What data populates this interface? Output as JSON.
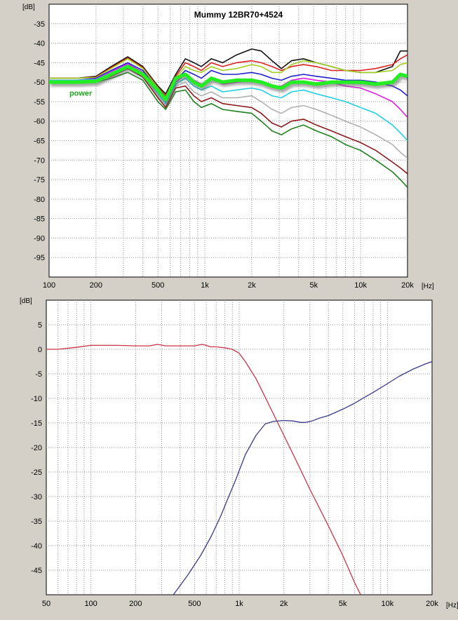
{
  "chart_data": [
    {
      "type": "line",
      "title": "Mummy 12BR70+4524",
      "ylabel": "[dB]",
      "xlabel": "[Hz]",
      "xscale": "log",
      "xlim": [
        100,
        20000
      ],
      "ylim": [
        -100,
        -30
      ],
      "yticks": [
        -35,
        -40,
        -45,
        -50,
        -55,
        -60,
        -65,
        -70,
        -75,
        -80,
        -85,
        -90,
        -95
      ],
      "xticks": [
        100,
        200,
        500,
        1000,
        2000,
        5000,
        10000,
        20000
      ],
      "xtick_labels": [
        "100",
        "200",
        "500",
        "1k",
        "2k",
        "5k",
        "10k",
        "20k"
      ],
      "grid": true,
      "annotations": [
        {
          "text": "power",
          "x": 135,
          "y": -53.5,
          "color": "#1ea81e"
        }
      ],
      "series": [
        {
          "color": "#111111",
          "x": [
            100,
            150,
            200,
            250,
            320,
            400,
            500,
            560,
            650,
            750,
            850,
            950,
            1100,
            1300,
            1600,
            2000,
            2300,
            2700,
            3100,
            3600,
            4300,
            5200,
            6500,
            8000,
            10000,
            12500,
            16000,
            18000,
            20000
          ],
          "y": [
            -49,
            -49,
            -48.5,
            -46,
            -43.5,
            -46,
            -51,
            -53,
            -48,
            -44,
            -45,
            -46,
            -44,
            -45,
            -43,
            -41.5,
            -42,
            -44.5,
            -46.5,
            -44.5,
            -44,
            -45,
            -46,
            -47,
            -47.5,
            -47.5,
            -46,
            -42,
            -42
          ]
        },
        {
          "color": "#e02020",
          "x": [
            100,
            150,
            200,
            250,
            320,
            400,
            500,
            560,
            650,
            750,
            850,
            950,
            1100,
            1300,
            1600,
            2000,
            2300,
            2700,
            3100,
            3600,
            4300,
            5200,
            6500,
            8000,
            10000,
            12500,
            16000,
            18000,
            20000
          ],
          "y": [
            -49,
            -49,
            -48.7,
            -46.3,
            -43.8,
            -46.3,
            -51.3,
            -53.5,
            -48.5,
            -45,
            -46,
            -47,
            -45,
            -46,
            -45,
            -44.5,
            -45,
            -46,
            -47,
            -46,
            -45.5,
            -46,
            -47,
            -47,
            -47,
            -46.5,
            -45.5,
            -44,
            -43
          ]
        },
        {
          "color": "#a0d020",
          "x": [
            100,
            150,
            200,
            250,
            320,
            400,
            500,
            560,
            650,
            750,
            850,
            950,
            1100,
            1300,
            1600,
            2000,
            2300,
            2700,
            3100,
            3600,
            4300,
            5200,
            6500,
            8000,
            10000,
            12500,
            16000,
            18000,
            20000
          ],
          "y": [
            -49,
            -49,
            -48.8,
            -46.5,
            -44,
            -46.5,
            -51.5,
            -54,
            -49,
            -46,
            -47,
            -47.5,
            -46,
            -47,
            -46.5,
            -45.5,
            -46,
            -47.5,
            -47.5,
            -45.5,
            -44.5,
            -45,
            -46,
            -47,
            -47.5,
            -47.5,
            -47,
            -45.5,
            -45
          ]
        },
        {
          "color": "#2020d0",
          "x": [
            100,
            150,
            200,
            250,
            320,
            400,
            500,
            560,
            650,
            750,
            850,
            950,
            1100,
            1300,
            1600,
            2000,
            2300,
            2700,
            3100,
            3600,
            4300,
            5200,
            6500,
            8000,
            10000,
            12500,
            16000,
            18000,
            20000
          ],
          "y": [
            -49.5,
            -49.5,
            -49,
            -47,
            -45,
            -47,
            -52,
            -54.5,
            -49.5,
            -47,
            -48,
            -49,
            -47,
            -48,
            -48,
            -47.5,
            -48,
            -49,
            -49.5,
            -48.5,
            -48,
            -48.5,
            -49,
            -49.5,
            -49.5,
            -50,
            -51,
            -52,
            -53.5
          ]
        },
        {
          "color": "#e020e0",
          "x": [
            100,
            150,
            200,
            250,
            320,
            400,
            500,
            560,
            650,
            750,
            850,
            950,
            1100,
            1300,
            1600,
            2000,
            2300,
            2700,
            3100,
            3600,
            4300,
            5200,
            6500,
            8000,
            10000,
            12500,
            16000,
            18000,
            20000
          ],
          "y": [
            -49.5,
            -49.5,
            -49.2,
            -47.3,
            -45.3,
            -47.5,
            -52.5,
            -55,
            -50,
            -48,
            -49.5,
            -50.5,
            -49,
            -50.5,
            -50,
            -49.5,
            -50,
            -51,
            -51,
            -49.5,
            -49,
            -49.5,
            -50,
            -51,
            -51.5,
            -53,
            -55,
            -57,
            -59
          ]
        },
        {
          "color": "#20d0e0",
          "x": [
            100,
            150,
            200,
            250,
            320,
            400,
            500,
            560,
            650,
            750,
            850,
            950,
            1100,
            1300,
            1600,
            2000,
            2300,
            2700,
            3100,
            3600,
            4300,
            5200,
            6500,
            8000,
            10000,
            12500,
            16000,
            18000,
            20000
          ],
          "y": [
            -49.5,
            -49.5,
            -49.3,
            -47.6,
            -45.6,
            -47.8,
            -53,
            -55.5,
            -50.5,
            -49,
            -51,
            -52,
            -51,
            -52.5,
            -52,
            -51.5,
            -52,
            -53.5,
            -54,
            -52.5,
            -52,
            -53,
            -54,
            -55,
            -56.5,
            -58,
            -61,
            -63,
            -65
          ]
        },
        {
          "color": "#b0b0b0",
          "x": [
            100,
            150,
            200,
            250,
            320,
            400,
            500,
            560,
            650,
            750,
            850,
            950,
            1100,
            1300,
            1600,
            2000,
            2300,
            2700,
            3100,
            3600,
            4300,
            5200,
            6500,
            8000,
            10000,
            12500,
            16000,
            18000,
            20000
          ],
          "y": [
            -49.7,
            -49.7,
            -49.5,
            -48,
            -46,
            -48.2,
            -53.5,
            -56,
            -51,
            -50,
            -52.5,
            -53.5,
            -52.5,
            -54,
            -54,
            -53.5,
            -55,
            -57,
            -58,
            -56.5,
            -56,
            -57,
            -58.5,
            -60,
            -61.5,
            -63.5,
            -66,
            -68,
            -69.5
          ]
        },
        {
          "color": "#8b1a1a",
          "x": [
            100,
            150,
            200,
            250,
            320,
            400,
            500,
            560,
            650,
            750,
            850,
            950,
            1100,
            1300,
            1600,
            2000,
            2300,
            2700,
            3100,
            3600,
            4300,
            5200,
            6500,
            8000,
            10000,
            12500,
            16000,
            18000,
            20000
          ],
          "y": [
            -49.8,
            -49.8,
            -49.7,
            -48.5,
            -46.5,
            -48.7,
            -54,
            -56.5,
            -51.5,
            -51,
            -53.5,
            -55,
            -54,
            -55.5,
            -56,
            -56.5,
            -58,
            -60.5,
            -61.5,
            -60,
            -59.5,
            -61,
            -62.5,
            -64,
            -65.5,
            -67.5,
            -70.5,
            -72,
            -73.5
          ]
        },
        {
          "color": "#208020",
          "x": [
            100,
            150,
            200,
            250,
            320,
            400,
            500,
            560,
            650,
            750,
            850,
            950,
            1100,
            1300,
            1600,
            2000,
            2300,
            2700,
            3100,
            3600,
            4300,
            5200,
            6500,
            8000,
            10000,
            12500,
            16000,
            18000,
            20000
          ],
          "y": [
            -50,
            -50,
            -50,
            -49,
            -47.5,
            -49.5,
            -55,
            -57,
            -52.5,
            -52,
            -55,
            -56.5,
            -55.5,
            -57,
            -57.5,
            -58,
            -60,
            -62.5,
            -63.5,
            -62,
            -61,
            -62.5,
            -64,
            -66,
            -67.5,
            -70,
            -73,
            -75,
            -77
          ]
        },
        {
          "color": "#22ee22",
          "shadow": true,
          "x": [
            100,
            150,
            200,
            250,
            320,
            400,
            500,
            560,
            650,
            750,
            850,
            950,
            1100,
            1300,
            1600,
            2000,
            2300,
            2700,
            3100,
            3600,
            4300,
            5200,
            6500,
            8000,
            10000,
            12500,
            16000,
            18000,
            20000
          ],
          "y": [
            -50,
            -50,
            -49.8,
            -48,
            -46,
            -48,
            -52,
            -54.5,
            -49,
            -48,
            -50,
            -51,
            -49,
            -50,
            -49.5,
            -49.5,
            -50,
            -51,
            -51.5,
            -50,
            -50,
            -50.5,
            -50,
            -50,
            -50,
            -50.5,
            -50,
            -48,
            -48.5
          ]
        }
      ]
    },
    {
      "type": "line",
      "title": "",
      "ylabel": "[dB]",
      "xlabel": "[Hz]",
      "xscale": "log",
      "xlim": [
        50,
        20000
      ],
      "ylim": [
        -50,
        10
      ],
      "yticks": [
        5,
        0,
        -5,
        -10,
        -15,
        -20,
        -25,
        -30,
        -35,
        -40,
        -45
      ],
      "xticks": [
        50,
        100,
        200,
        500,
        1000,
        2000,
        5000,
        10000,
        20000
      ],
      "xtick_labels": [
        "50",
        "100",
        "200",
        "500",
        "1k",
        "2k",
        "5k",
        "10k",
        "20k"
      ],
      "grid": true,
      "series": [
        {
          "color": "#cc3344",
          "x": [
            50,
            60,
            80,
            100,
            150,
            200,
            250,
            280,
            320,
            400,
            500,
            560,
            600,
            640,
            700,
            800,
            900,
            1000,
            1100,
            1300,
            1600,
            2000,
            2500,
            3000,
            4000,
            5000,
            6000,
            6600
          ],
          "y": [
            0,
            0,
            0.4,
            0.8,
            0.8,
            0.7,
            0.7,
            1,
            0.7,
            0.7,
            0.7,
            1,
            0.8,
            0.5,
            0.5,
            0.3,
            0,
            -0.8,
            -2.5,
            -6,
            -11.5,
            -17.5,
            -23.5,
            -28.5,
            -36,
            -42,
            -47.5,
            -50
          ]
        },
        {
          "color": "#3a3a8c",
          "x": [
            360,
            450,
            550,
            650,
            750,
            850,
            950,
            1100,
            1300,
            1500,
            1700,
            2000,
            2300,
            2600,
            2800,
            3100,
            3500,
            4000,
            5000,
            6000,
            7000,
            8000,
            10000,
            12000,
            15000,
            18000,
            20000
          ],
          "y": [
            -50,
            -46,
            -42,
            -38,
            -34,
            -30,
            -26.5,
            -21.5,
            -17.5,
            -15.2,
            -14.7,
            -14.5,
            -14.6,
            -14.9,
            -14.9,
            -14.6,
            -14,
            -13.5,
            -12.2,
            -11,
            -9.8,
            -8.8,
            -7,
            -5.5,
            -4,
            -3,
            -2.5
          ]
        }
      ]
    }
  ]
}
